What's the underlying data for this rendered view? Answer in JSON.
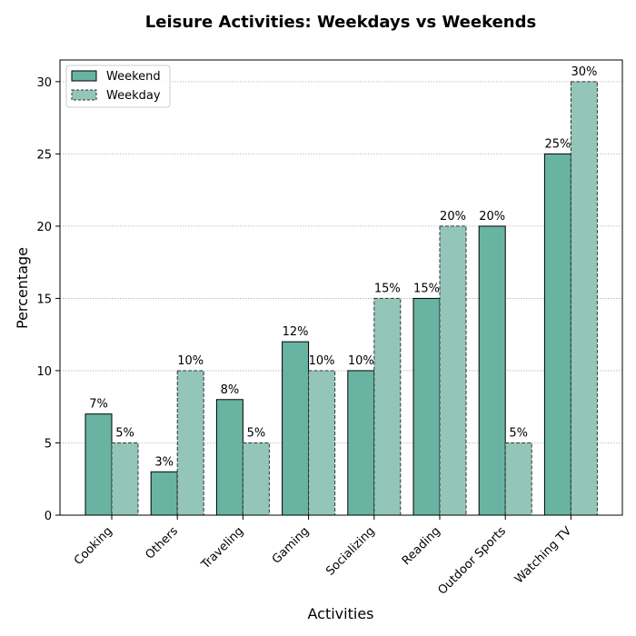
{
  "chart_data": {
    "type": "bar",
    "title": "Leisure Activities: Weekdays vs Weekends",
    "xlabel": "Activities",
    "ylabel": "Percentage",
    "ylim": [
      0,
      31.5
    ],
    "yticks": [
      0,
      5,
      10,
      15,
      20,
      25,
      30
    ],
    "grid": "y-dotted",
    "legend_placement": "top-left",
    "categories": [
      "Cooking",
      "Others",
      "Traveling",
      "Gaming",
      "Socializing",
      "Reading",
      "Outdoor Sports",
      "Watching TV"
    ],
    "series": [
      {
        "name": "Weekend",
        "values": [
          7,
          3,
          8,
          12,
          10,
          15,
          20,
          25
        ],
        "labels": [
          "7%",
          "3%",
          "8%",
          "12%",
          "10%",
          "15%",
          "20%",
          "25%"
        ],
        "color": "#69b3a2",
        "edge": "solid"
      },
      {
        "name": "Weekday",
        "values": [
          5,
          10,
          5,
          10,
          15,
          20,
          5,
          30
        ],
        "labels": [
          "5%",
          "10%",
          "5%",
          "10%",
          "15%",
          "20%",
          "5%",
          "30%"
        ],
        "color": "#93c6b9",
        "edge": "dashed"
      }
    ]
  }
}
